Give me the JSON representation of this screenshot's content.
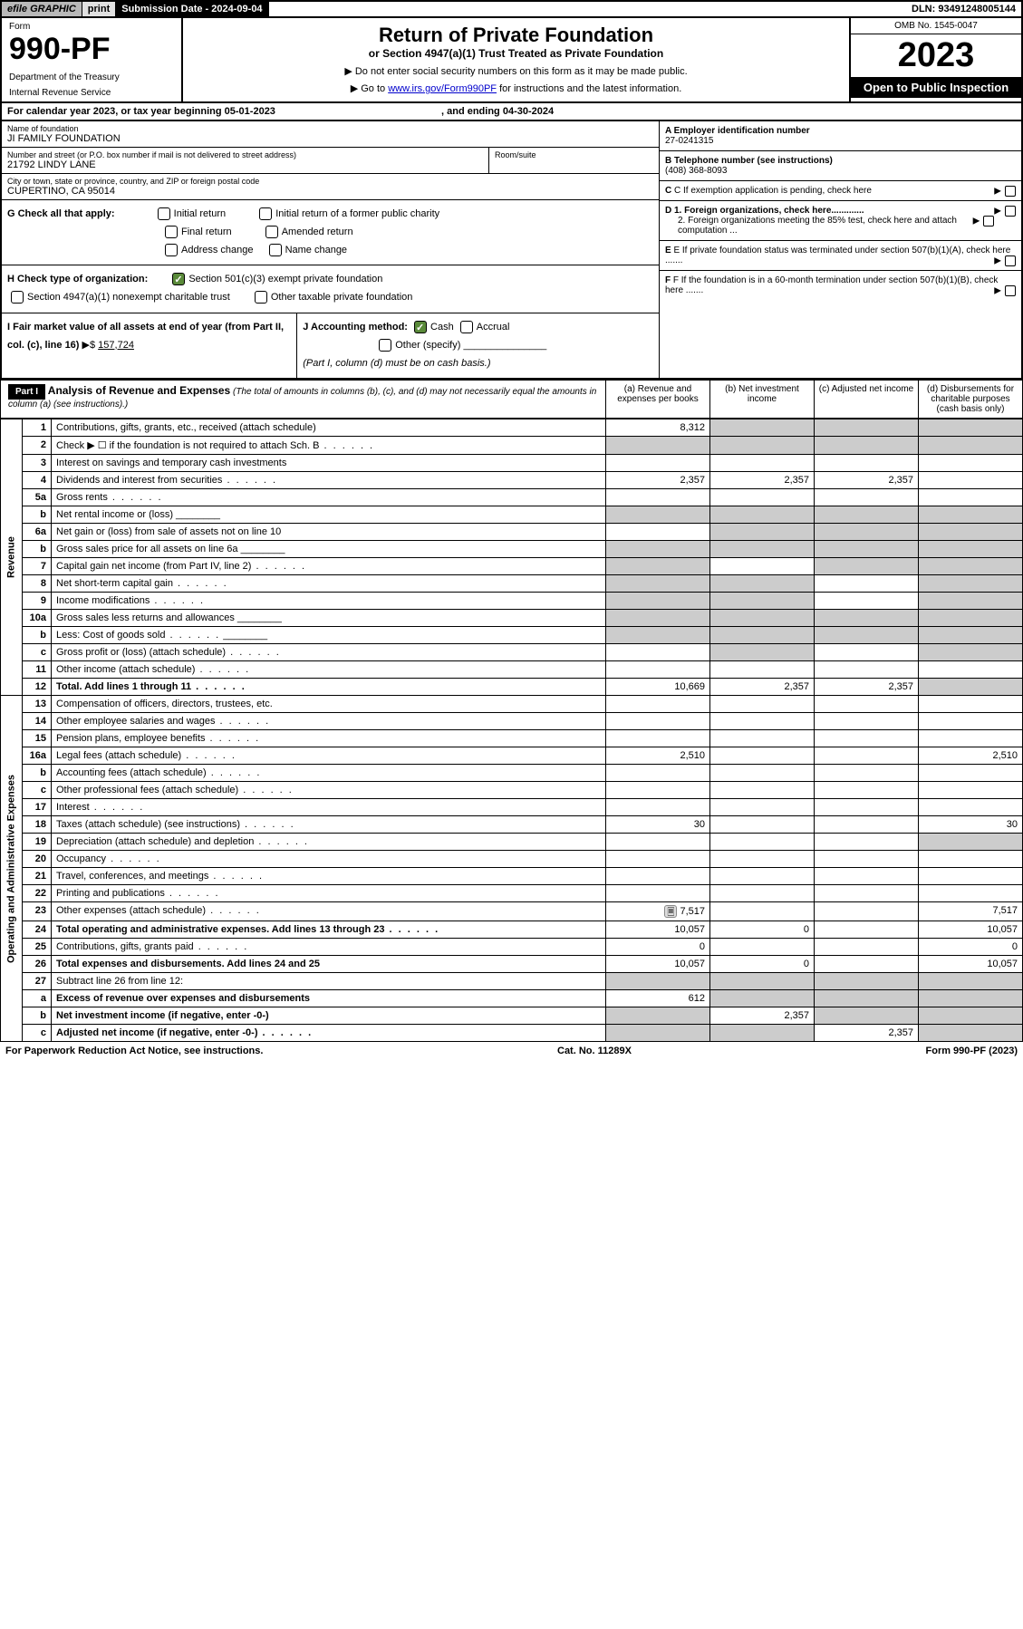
{
  "topbar": {
    "efile": "efile GRAPHIC",
    "print": "print",
    "subdate_label": "Submission Date - ",
    "subdate": "2024-09-04",
    "dln_label": "DLN: ",
    "dln": "93491248005144"
  },
  "header": {
    "form_label": "Form",
    "form_num": "990-PF",
    "dept1": "Department of the Treasury",
    "dept2": "Internal Revenue Service",
    "title": "Return of Private Foundation",
    "sub": "or Section 4947(a)(1) Trust Treated as Private Foundation",
    "note1": "▶ Do not enter social security numbers on this form as it may be made public.",
    "note2_pre": "▶ Go to ",
    "note2_link": "www.irs.gov/Form990PF",
    "note2_post": " for instructions and the latest information.",
    "omb": "OMB No. 1545-0047",
    "year": "2023",
    "inspect": "Open to Public Inspection"
  },
  "calyear": {
    "pre": "For calendar year 2023, or tax year beginning ",
    "begin": "05-01-2023",
    "mid": ", and ending ",
    "end": "04-30-2024"
  },
  "info": {
    "name_label": "Name of foundation",
    "name": "JI FAMILY FOUNDATION",
    "addr_label": "Number and street (or P.O. box number if mail is not delivered to street address)",
    "addr": "21792 LINDY LANE",
    "room_label": "Room/suite",
    "city_label": "City or town, state or province, country, and ZIP or foreign postal code",
    "city": "CUPERTINO, CA  95014",
    "ein_label": "A Employer identification number",
    "ein": "27-0241315",
    "tel_label": "B Telephone number (see instructions)",
    "tel": "(408) 368-8093",
    "c": "C If exemption application is pending, check here",
    "d1": "D 1. Foreign organizations, check here.............",
    "d2": "2. Foreign organizations meeting the 85% test, check here and attach computation ...",
    "e": "E  If private foundation status was terminated under section 507(b)(1)(A), check here .......",
    "f": "F  If the foundation is in a 60-month termination under section 507(b)(1)(B), check here ......."
  },
  "checks": {
    "g_label": "G Check all that apply:",
    "g1": "Initial return",
    "g2": "Initial return of a former public charity",
    "g3": "Final return",
    "g4": "Amended return",
    "g5": "Address change",
    "g6": "Name change",
    "h_label": "H Check type of organization:",
    "h1": "Section 501(c)(3) exempt private foundation",
    "h2": "Section 4947(a)(1) nonexempt charitable trust",
    "h3": "Other taxable private foundation",
    "i_label": "I Fair market value of all assets at end of year (from Part II, col. (c), line 16)",
    "i_val": "157,724",
    "j_label": "J Accounting method:",
    "j1": "Cash",
    "j2": "Accrual",
    "j3": "Other (specify)",
    "j_note": "(Part I, column (d) must be on cash basis.)"
  },
  "part1": {
    "label": "Part I",
    "title": "Analysis of Revenue and Expenses",
    "sub": "(The total of amounts in columns (b), (c), and (d) may not necessarily equal the amounts in column (a) (see instructions).)",
    "ca": "(a)  Revenue and expenses per books",
    "cb": "(b)  Net investment income",
    "cc": "(c)  Adjusted net income",
    "cd": "(d)  Disbursements for charitable purposes (cash basis only)"
  },
  "sections": {
    "rev": "Revenue",
    "exp": "Operating and Administrative Expenses"
  },
  "rows": [
    {
      "n": "1",
      "d": "Contributions, gifts, grants, etc., received (attach schedule)",
      "a": "8,312",
      "grey": [
        "b",
        "c",
        "d"
      ]
    },
    {
      "n": "2",
      "d": "Check ▶ ☐ if the foundation is not required to attach Sch. B",
      "grey": [
        "a",
        "b",
        "c",
        "d"
      ],
      "dots": 1
    },
    {
      "n": "3",
      "d": "Interest on savings and temporary cash investments"
    },
    {
      "n": "4",
      "d": "Dividends and interest from securities",
      "a": "2,357",
      "b": "2,357",
      "c": "2,357",
      "dots": 1
    },
    {
      "n": "5a",
      "d": "Gross rents",
      "dots": 1
    },
    {
      "n": "b",
      "d": "Net rental income or (loss)",
      "grey": [
        "a",
        "b",
        "c",
        "d"
      ],
      "inline": 1
    },
    {
      "n": "6a",
      "d": "Net gain or (loss) from sale of assets not on line 10",
      "grey": [
        "b",
        "c",
        "d"
      ]
    },
    {
      "n": "b",
      "d": "Gross sales price for all assets on line 6a",
      "grey": [
        "a",
        "b",
        "c",
        "d"
      ],
      "inline": 1
    },
    {
      "n": "7",
      "d": "Capital gain net income (from Part IV, line 2)",
      "grey": [
        "a",
        "c",
        "d"
      ],
      "dots": 1
    },
    {
      "n": "8",
      "d": "Net short-term capital gain",
      "grey": [
        "a",
        "b",
        "d"
      ],
      "dots": 1
    },
    {
      "n": "9",
      "d": "Income modifications",
      "grey": [
        "a",
        "b",
        "d"
      ],
      "dots": 1
    },
    {
      "n": "10a",
      "d": "Gross sales less returns and allowances",
      "grey": [
        "a",
        "b",
        "c",
        "d"
      ],
      "inline": 1
    },
    {
      "n": "b",
      "d": "Less: Cost of goods sold",
      "grey": [
        "a",
        "b",
        "c",
        "d"
      ],
      "inline": 1,
      "dots": 1
    },
    {
      "n": "c",
      "d": "Gross profit or (loss) (attach schedule)",
      "grey": [
        "b",
        "d"
      ],
      "dots": 1
    },
    {
      "n": "11",
      "d": "Other income (attach schedule)",
      "dots": 1
    },
    {
      "n": "12",
      "d": "Total. Add lines 1 through 11",
      "a": "10,669",
      "b": "2,357",
      "c": "2,357",
      "bold": 1,
      "grey": [
        "d"
      ],
      "dots": 1
    },
    {
      "sec": "exp"
    },
    {
      "n": "13",
      "d": "Compensation of officers, directors, trustees, etc."
    },
    {
      "n": "14",
      "d": "Other employee salaries and wages",
      "dots": 1
    },
    {
      "n": "15",
      "d": "Pension plans, employee benefits",
      "dots": 1
    },
    {
      "n": "16a",
      "d": "Legal fees (attach schedule)",
      "a": "2,510",
      "d4": "2,510",
      "dots": 1
    },
    {
      "n": "b",
      "d": "Accounting fees (attach schedule)",
      "dots": 1
    },
    {
      "n": "c",
      "d": "Other professional fees (attach schedule)",
      "dots": 1
    },
    {
      "n": "17",
      "d": "Interest",
      "dots": 1
    },
    {
      "n": "18",
      "d": "Taxes (attach schedule) (see instructions)",
      "a": "30",
      "d4": "30",
      "dots": 1
    },
    {
      "n": "19",
      "d": "Depreciation (attach schedule) and depletion",
      "grey": [
        "d"
      ],
      "dots": 1
    },
    {
      "n": "20",
      "d": "Occupancy",
      "dots": 1
    },
    {
      "n": "21",
      "d": "Travel, conferences, and meetings",
      "dots": 1
    },
    {
      "n": "22",
      "d": "Printing and publications",
      "dots": 1
    },
    {
      "n": "23",
      "d": "Other expenses (attach schedule)",
      "a": "7,517",
      "d4": "7,517",
      "icon": 1,
      "dots": 1
    },
    {
      "n": "24",
      "d": "Total operating and administrative expenses. Add lines 13 through 23",
      "a": "10,057",
      "b": "0",
      "d4": "10,057",
      "bold": 1,
      "dots": 1
    },
    {
      "n": "25",
      "d": "Contributions, gifts, grants paid",
      "a": "0",
      "d4": "0",
      "dots": 1
    },
    {
      "n": "26",
      "d": "Total expenses and disbursements. Add lines 24 and 25",
      "a": "10,057",
      "b": "0",
      "d4": "10,057",
      "bold": 1
    },
    {
      "n": "27",
      "d": "Subtract line 26 from line 12:",
      "grey": [
        "a",
        "b",
        "c",
        "d"
      ]
    },
    {
      "n": "a",
      "d": "Excess of revenue over expenses and disbursements",
      "a": "612",
      "grey": [
        "b",
        "c",
        "d"
      ],
      "bold": 1
    },
    {
      "n": "b",
      "d": "Net investment income (if negative, enter -0-)",
      "b": "2,357",
      "grey": [
        "a",
        "c",
        "d"
      ],
      "bold": 1
    },
    {
      "n": "c",
      "d": "Adjusted net income (if negative, enter -0-)",
      "c": "2,357",
      "grey": [
        "a",
        "b",
        "d"
      ],
      "bold": 1,
      "dots": 1
    }
  ],
  "footer": {
    "left": "For Paperwork Reduction Act Notice, see instructions.",
    "mid": "Cat. No. 11289X",
    "right": "Form 990-PF (2023)"
  }
}
